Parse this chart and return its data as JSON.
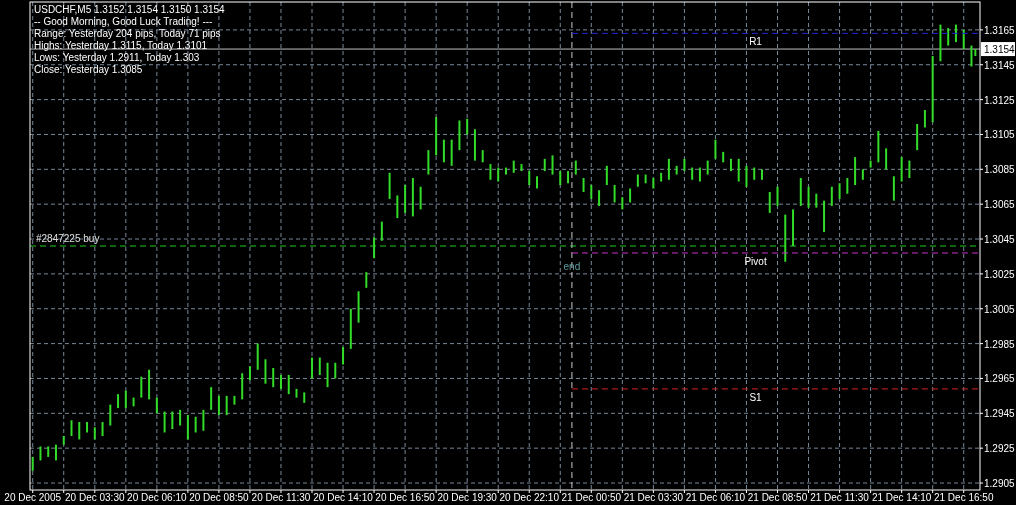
{
  "chart_data": {
    "type": "bar",
    "title": "USDCHF,M5 1.3152 1.3154 1.3150 1.3154",
    "annotations": [
      "-- Good Morning, Good Luck Trading! ---",
      "Range: Yesterday 204 pips, Today 71 pips",
      "Highs: Yesterday 1.3115, Today 1.3101",
      "Lows: Yesterday 1.2911, Today 1.303",
      "Close: Yesterday 1.3085"
    ],
    "xlim": [
      "2005-12-20T00:43",
      "2005-12-21T17:32"
    ],
    "xticks": [
      {
        "value": "2005-12-20T00:50",
        "label": "20 Dec 2005"
      },
      {
        "value": "2005-12-20T02:10",
        "label": null
      },
      {
        "value": "2005-12-20T03:30",
        "label": "20 Dec 03:30"
      },
      {
        "value": "2005-12-20T04:50",
        "label": null
      },
      {
        "value": "2005-12-20T06:10",
        "label": "20 Dec 06:10"
      },
      {
        "value": "2005-12-20T07:30",
        "label": null
      },
      {
        "value": "2005-12-20T08:50",
        "label": "20 Dec 08:50"
      },
      {
        "value": "2005-12-20T10:10",
        "label": null
      },
      {
        "value": "2005-12-20T11:30",
        "label": "20 Dec 11:30"
      },
      {
        "value": "2005-12-20T12:50",
        "label": null
      },
      {
        "value": "2005-12-20T14:10",
        "label": "20 Dec 14:10"
      },
      {
        "value": "2005-12-20T15:30",
        "label": null
      },
      {
        "value": "2005-12-20T16:50",
        "label": "20 Dec 16:50"
      },
      {
        "value": "2005-12-20T18:10",
        "label": null
      },
      {
        "value": "2005-12-20T19:30",
        "label": "20 Dec 19:30"
      },
      {
        "value": "2005-12-20T20:50",
        "label": null
      },
      {
        "value": "2005-12-20T22:10",
        "label": "20 Dec 22:10"
      },
      {
        "value": "2005-12-20T23:30",
        "label": null
      },
      {
        "value": "2005-12-21T00:50",
        "label": "21 Dec 00:50"
      },
      {
        "value": "2005-12-21T02:10",
        "label": null
      },
      {
        "value": "2005-12-21T03:30",
        "label": "21 Dec 03:30"
      },
      {
        "value": "2005-12-21T04:50",
        "label": null
      },
      {
        "value": "2005-12-21T06:10",
        "label": "21 Dec 06:10"
      },
      {
        "value": "2005-12-21T07:30",
        "label": null
      },
      {
        "value": "2005-12-21T08:50",
        "label": "21 Dec 08:50"
      },
      {
        "value": "2005-12-21T10:10",
        "label": null
      },
      {
        "value": "2005-12-21T11:30",
        "label": "21 Dec 11:30"
      },
      {
        "value": "2005-12-21T12:50",
        "label": null
      },
      {
        "value": "2005-12-21T14:10",
        "label": "21 Dec 14:10"
      },
      {
        "value": "2005-12-21T15:30",
        "label": null
      },
      {
        "value": "2005-12-21T16:50",
        "label": "21 Dec 16:50"
      }
    ],
    "ylim": [
      1.2901,
      1.3181
    ],
    "yticks": [
      1.2905,
      1.2925,
      1.2945,
      1.2965,
      1.2985,
      1.3005,
      1.3025,
      1.3045,
      1.3065,
      1.3085,
      1.3105,
      1.3125,
      1.3145,
      1.3165
    ],
    "grid": true,
    "series": [
      {
        "color": "#32dc28",
        "x": [
          "2005-12-20T00:50",
          "2005-12-20T01:10",
          "2005-12-20T01:30",
          "2005-12-20T01:50",
          "2005-12-20T02:10",
          "2005-12-20T02:30",
          "2005-12-20T02:50",
          "2005-12-20T03:10",
          "2005-12-20T03:30",
          "2005-12-20T03:50",
          "2005-12-20T04:10",
          "2005-12-20T04:30",
          "2005-12-20T04:50",
          "2005-12-20T05:10",
          "2005-12-20T05:30",
          "2005-12-20T05:50",
          "2005-12-20T06:10",
          "2005-12-20T06:30",
          "2005-12-20T06:50",
          "2005-12-20T07:10",
          "2005-12-20T07:30",
          "2005-12-20T07:50",
          "2005-12-20T08:10",
          "2005-12-20T08:30",
          "2005-12-20T08:50",
          "2005-12-20T09:10",
          "2005-12-20T09:30",
          "2005-12-20T09:50",
          "2005-12-20T10:10",
          "2005-12-20T10:30",
          "2005-12-20T10:50",
          "2005-12-20T11:10",
          "2005-12-20T11:30",
          "2005-12-20T11:50",
          "2005-12-20T12:10",
          "2005-12-20T12:30",
          "2005-12-20T12:50",
          "2005-12-20T13:10",
          "2005-12-20T13:30",
          "2005-12-20T13:50",
          "2005-12-20T14:10",
          "2005-12-20T14:30",
          "2005-12-20T14:50",
          "2005-12-20T15:10",
          "2005-12-20T15:30",
          "2005-12-20T15:50",
          "2005-12-20T16:10",
          "2005-12-20T16:30",
          "2005-12-20T16:50",
          "2005-12-20T17:10",
          "2005-12-20T17:30",
          "2005-12-20T17:50",
          "2005-12-20T18:10",
          "2005-12-20T18:30",
          "2005-12-20T18:50",
          "2005-12-20T19:10",
          "2005-12-20T19:30",
          "2005-12-20T19:50",
          "2005-12-20T20:10",
          "2005-12-20T20:30",
          "2005-12-20T20:50",
          "2005-12-20T21:10",
          "2005-12-20T21:30",
          "2005-12-20T21:50",
          "2005-12-20T22:10",
          "2005-12-20T22:30",
          "2005-12-20T22:50",
          "2005-12-20T23:10",
          "2005-12-20T23:30",
          "2005-12-20T23:50",
          "2005-12-21T00:10",
          "2005-12-21T00:30",
          "2005-12-21T00:50",
          "2005-12-21T01:10",
          "2005-12-21T01:30",
          "2005-12-21T01:50",
          "2005-12-21T02:10",
          "2005-12-21T02:30",
          "2005-12-21T02:50",
          "2005-12-21T03:10",
          "2005-12-21T03:30",
          "2005-12-21T03:50",
          "2005-12-21T04:10",
          "2005-12-21T04:30",
          "2005-12-21T04:50",
          "2005-12-21T05:10",
          "2005-12-21T05:30",
          "2005-12-21T05:50",
          "2005-12-21T06:10",
          "2005-12-21T06:30",
          "2005-12-21T06:50",
          "2005-12-21T07:10",
          "2005-12-21T07:30",
          "2005-12-21T07:50",
          "2005-12-21T08:10",
          "2005-12-21T08:30",
          "2005-12-21T08:50",
          "2005-12-21T09:10",
          "2005-12-21T09:30",
          "2005-12-21T09:50",
          "2005-12-21T10:10",
          "2005-12-21T10:30",
          "2005-12-21T10:50",
          "2005-12-21T11:10",
          "2005-12-21T11:30",
          "2005-12-21T11:50",
          "2005-12-21T12:10",
          "2005-12-21T12:30",
          "2005-12-21T12:50",
          "2005-12-21T13:10",
          "2005-12-21T13:30",
          "2005-12-21T13:50",
          "2005-12-21T14:10",
          "2005-12-21T14:30",
          "2005-12-21T14:50",
          "2005-12-21T15:10",
          "2005-12-21T15:30",
          "2005-12-21T15:50",
          "2005-12-21T16:10",
          "2005-12-21T16:30",
          "2005-12-21T16:50",
          "2005-12-21T17:10",
          "2005-12-21T17:20"
        ],
        "base": [
          1.2912,
          1.2918,
          1.292,
          1.2918,
          1.2927,
          1.2932,
          1.293,
          1.2934,
          1.293,
          1.2932,
          1.2938,
          1.2948,
          1.2948,
          1.2949,
          1.2954,
          1.2953,
          1.2945,
          1.2934,
          1.2936,
          1.2938,
          1.293,
          1.2934,
          1.2935,
          1.2947,
          1.2944,
          1.2944,
          1.295,
          1.2953,
          1.2964,
          1.297,
          1.2962,
          1.296,
          1.2959,
          1.2956,
          1.2954,
          1.2951,
          1.2965,
          1.2967,
          1.296,
          1.2965,
          1.2973,
          1.2982,
          1.2997,
          1.3017,
          1.3034,
          1.3044,
          1.3068,
          1.3057,
          1.306,
          1.3058,
          1.3062,
          1.3082,
          1.3093,
          1.3089,
          1.3087,
          1.3096,
          1.3105,
          1.309,
          1.3089,
          1.3079,
          1.3078,
          1.3082,
          1.3083,
          1.3084,
          1.3076,
          1.3074,
          1.3084,
          1.3082,
          1.3076,
          1.3077,
          1.3082,
          1.3072,
          1.3068,
          1.3064,
          1.3076,
          1.3066,
          1.3062,
          1.3066,
          1.3075,
          1.3077,
          1.3074,
          1.3078,
          1.3079,
          1.3082,
          1.3084,
          1.3079,
          1.3078,
          1.3082,
          1.3091,
          1.3089,
          1.3084,
          1.3078,
          1.3075,
          1.3079,
          1.3079,
          1.306,
          1.3064,
          1.3032,
          1.3041,
          1.3064,
          1.3063,
          1.3063,
          1.3049,
          1.3064,
          1.3068,
          1.3071,
          1.3076,
          1.3079,
          1.3086,
          1.3089,
          1.3085,
          1.3067,
          1.3078,
          1.308,
          1.3096,
          1.3109,
          1.3112,
          1.3147,
          1.3156,
          1.3158,
          1.3154,
          1.3144,
          1.315
        ],
        "values": [
          0.0008,
          0.0008,
          0.0006,
          0.0009,
          0.0005,
          0.0009,
          0.001,
          0.0006,
          0.0007,
          0.0008,
          0.0012,
          0.0008,
          0.001,
          0.0005,
          0.0012,
          0.0017,
          0.0009,
          0.0012,
          0.001,
          0.0009,
          0.0014,
          0.0009,
          0.0012,
          0.0013,
          0.0011,
          0.0011,
          0.0005,
          0.0015,
          0.0008,
          0.0015,
          0.0014,
          0.0011,
          0.0008,
          0.0011,
          0.0005,
          0.0006,
          0.0012,
          0.001,
          0.0014,
          0.0009,
          0.001,
          0.0023,
          0.0018,
          0.0009,
          0.0012,
          0.0011,
          0.0015,
          0.0013,
          0.0016,
          0.0022,
          0.0013,
          0.0014,
          0.0022,
          0.0013,
          0.0015,
          0.0017,
          0.0009,
          0.0018,
          0.0007,
          0.0009,
          0.0008,
          0.0004,
          0.0007,
          0.0004,
          0.0008,
          0.0007,
          0.0007,
          0.0011,
          0.0008,
          0.0007,
          0.0008,
          0.0008,
          0.0008,
          0.0009,
          0.0011,
          0.001,
          0.0007,
          0.0008,
          0.0007,
          0.0005,
          0.0006,
          0.0005,
          0.0012,
          0.0005,
          0.0007,
          0.0007,
          0.0008,
          0.0008,
          0.0011,
          0.0006,
          0.0007,
          0.0013,
          0.0012,
          0.0007,
          0.0006,
          0.0012,
          0.0011,
          0.0027,
          0.0021,
          0.0016,
          0.0012,
          0.0008,
          0.0018,
          0.0011,
          0.0009,
          0.0009,
          0.0016,
          0.0006,
          0.0004,
          0.0018,
          0.0012,
          0.0014,
          0.0014,
          0.001,
          0.0015,
          0.001,
          0.0038,
          0.0021,
          0.001,
          0.001,
          0.0011,
          0.0012,
          0.0004
        ]
      },
      {
        "type": "line",
        "name": "R1",
        "color": "#2424d0",
        "line_style": "dashed",
        "x": [
          "2005-12-21T00:00",
          "2005-12-21T17:32"
        ],
        "values": [
          1.3163,
          1.3163
        ]
      },
      {
        "type": "line",
        "name": "Pivot",
        "color": "#cc33cc",
        "line_style": "dashed",
        "x": [
          "2005-12-21T00:00",
          "2005-12-21T17:32"
        ],
        "values": [
          1.3037,
          1.3037
        ]
      },
      {
        "type": "line",
        "name": "S1",
        "color": "#dd2222",
        "line_style": "dashed",
        "x": [
          "2005-12-21T00:00",
          "2005-12-21T17:32"
        ],
        "values": [
          1.2959,
          1.2959
        ]
      }
    ],
    "ref_lines": [
      {
        "axis": "y",
        "value": 1.3154,
        "label": "1.3154",
        "color": "#c0c0c0"
      },
      {
        "axis": "y",
        "value": 1.3041,
        "label": "#2847225 buy",
        "color": "#22cc22",
        "line_style": "dashed"
      },
      {
        "axis": "x",
        "value": "2005-12-21T00:00",
        "label": "end",
        "color": "#c8c8c8",
        "line_style": "dashed"
      }
    ]
  }
}
